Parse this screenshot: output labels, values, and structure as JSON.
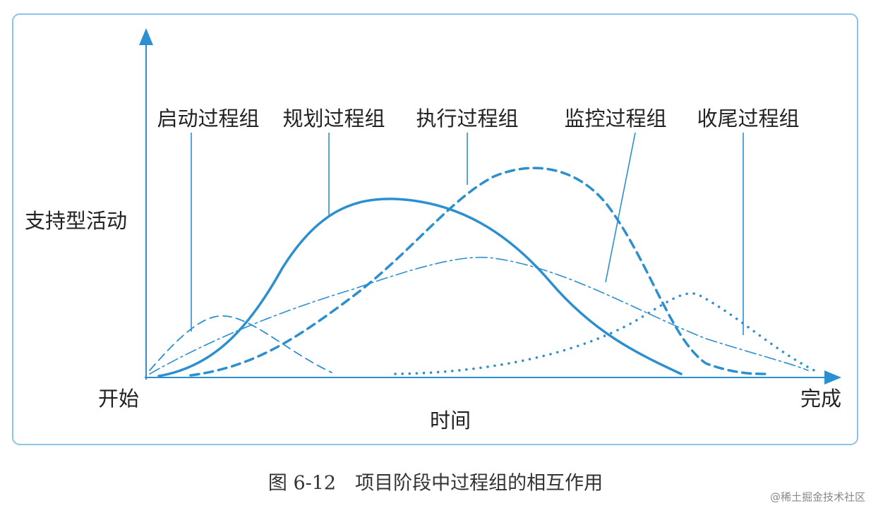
{
  "labels": [
    "启动过程组",
    "规划过程组",
    "执行过程组",
    "监控过程组",
    "收尾过程组"
  ],
  "y_label": "支持型活动",
  "x_start": "开始",
  "x_end": "完成",
  "x_label": "时间",
  "caption": "图 6-12　项目阶段中过程组的相互作用",
  "watermark": "@稀土掘金技术社区"
}
